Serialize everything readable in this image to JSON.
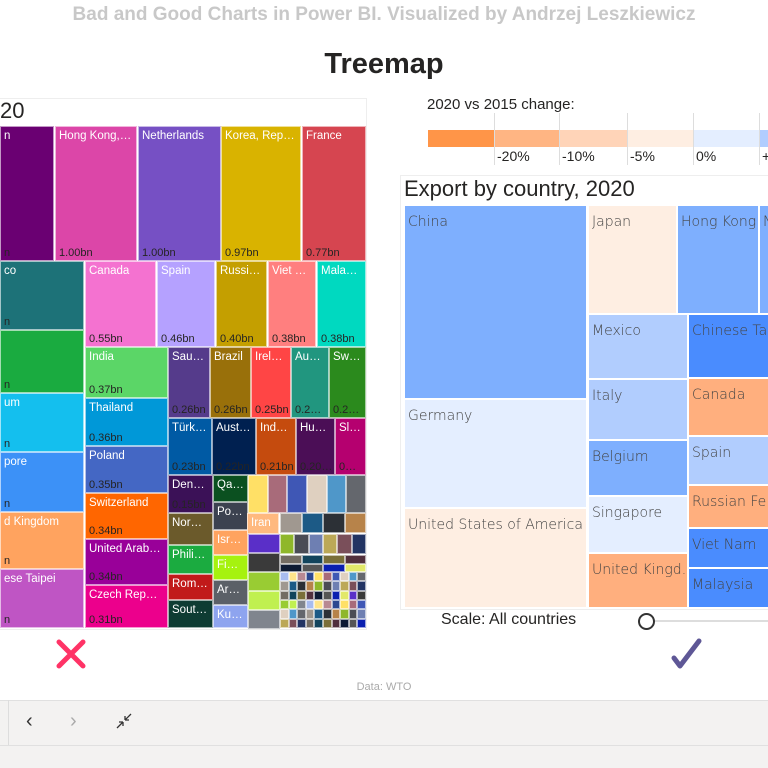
{
  "header": {
    "top_title": "Bad and Good Charts in Power BI. Visualized by Andrzej Leszkiewicz",
    "main_title": "Treemap"
  },
  "left_chart": {
    "title_fragment": "20",
    "cells": [
      {
        "label": "n",
        "value": "n",
        "color": "#6a0072"
      },
      {
        "label": "Hong Kong,…",
        "value": "1.00bn",
        "color": "#dc46a8"
      },
      {
        "label": "Netherlands",
        "value": "1.00bn",
        "color": "#7650c4"
      },
      {
        "label": "Korea, Rep…",
        "value": "0.97bn",
        "color": "#d9b300"
      },
      {
        "label": "France",
        "value": "0.77bn",
        "color": "#d64550"
      },
      {
        "label": "co",
        "value": "n",
        "color": "#1d7278"
      },
      {
        "label": "",
        "value": "n",
        "color": "#1aab40"
      },
      {
        "label": "um",
        "value": "n",
        "color": "#14bfee"
      },
      {
        "label": "pore",
        "value": "n",
        "color": "#3c91f7"
      },
      {
        "label": "d Kingdom",
        "value": "n",
        "color": "#ffa35f"
      },
      {
        "label": "ese Taipei",
        "value": "n",
        "color": "#bf55c4"
      },
      {
        "label": "Canada",
        "value": "0.55bn",
        "color": "#f472d0"
      },
      {
        "label": "Spain",
        "value": "0.46bn",
        "color": "#b5a1ff"
      },
      {
        "label": "Russi…",
        "value": "0.40bn",
        "color": "#c49f00"
      },
      {
        "label": "Viet …",
        "value": "0.38bn",
        "color": "#ff7f7f"
      },
      {
        "label": "Mala…",
        "value": "0.38bn",
        "color": "#00d9c0"
      },
      {
        "label": "India",
        "value": "0.37bn",
        "color": "#5bd667"
      },
      {
        "label": "Thailand",
        "value": "0.36bn",
        "color": "#0098d8"
      },
      {
        "label": "Poland",
        "value": "0.35bn",
        "color": "#4467c4"
      },
      {
        "label": "Switzerland",
        "value": "0.34bn",
        "color": "#ff6600"
      },
      {
        "label": "United Arab…",
        "value": "0.34bn",
        "color": "#990099"
      },
      {
        "label": "Czech Rep…",
        "value": "0.31bn",
        "color": "#ec008c"
      },
      {
        "label": "Sau…",
        "value": "0.26bn",
        "color": "#553b8b"
      },
      {
        "label": "Brazil",
        "value": "0.26bn",
        "color": "#99700a"
      },
      {
        "label": "Irel…",
        "value": "0.25bn",
        "color": "#ff4545"
      },
      {
        "label": "Au…",
        "value": "0.2…",
        "color": "#21967f"
      },
      {
        "label": "Sw…",
        "value": "0.2…",
        "color": "#2b8a1d"
      },
      {
        "label": "Türk…",
        "value": "0.23bn",
        "color": "#005aa4"
      },
      {
        "label": "Aust…",
        "value": "0.22bn",
        "color": "#002050"
      },
      {
        "label": "Ind…",
        "value": "0.21bn",
        "color": "#c54b0e"
      },
      {
        "label": "Hu…",
        "value": "0.20…",
        "color": "#4b0e56"
      },
      {
        "label": "Sl…",
        "value": "0…",
        "color": "#b5006f"
      },
      {
        "label": "Den…",
        "value": "0.15bn",
        "color": "#3b1157"
      },
      {
        "label": "Nor…",
        "value": "",
        "color": "#6b5a2b"
      },
      {
        "label": "Phili…",
        "value": "",
        "color": "#1bab40"
      },
      {
        "label": "Rom…",
        "value": "",
        "color": "#c11a1a"
      },
      {
        "label": "Sout…",
        "value": "",
        "color": "#0e3c33"
      },
      {
        "label": "Qa…",
        "value": "",
        "color": "#0b5020"
      },
      {
        "label": "Po…",
        "value": "",
        "color": "#3c4250"
      },
      {
        "label": "Isr…",
        "value": "",
        "color": "#ffa35f"
      },
      {
        "label": "Fi…",
        "value": "",
        "color": "#a6f20f"
      },
      {
        "label": "Ar…",
        "value": "",
        "color": "#5b6067"
      },
      {
        "label": "Ku…",
        "value": "",
        "color": "#8ea4ef"
      },
      {
        "label": "Iran",
        "value": "",
        "color": "#ffb97f"
      }
    ]
  },
  "legend": {
    "title": "2020 vs 2015 change:",
    "colors": [
      "#ff9548",
      "#ffb583",
      "#ffd4b8",
      "#feeee2",
      "#e4eeff",
      "#b1cdfe"
    ],
    "ticks": [
      "-20%",
      "-10%",
      "-5%",
      "0%",
      "+"
    ]
  },
  "right_chart": {
    "title": "Export by country, 2020",
    "cells": [
      {
        "label": "China",
        "color": "#7eaffe"
      },
      {
        "label": "Germany",
        "color": "#e4eeff"
      },
      {
        "label": "United States of America",
        "color": "#feeee2"
      },
      {
        "label": "Japan",
        "color": "#feeee2"
      },
      {
        "label": "Hong Kong…",
        "color": "#7eaffe"
      },
      {
        "label": "N",
        "color": "#7eaffe"
      },
      {
        "label": "Mexico",
        "color": "#b1cdfe"
      },
      {
        "label": "Italy",
        "color": "#b1cdfe"
      },
      {
        "label": "Belgium",
        "color": "#7eaffe"
      },
      {
        "label": "Singapore",
        "color": "#e4eeff"
      },
      {
        "label": "United Kingd…",
        "color": "#ffaf7e"
      },
      {
        "label": "Chinese Ta…",
        "color": "#4a8cfe"
      },
      {
        "label": "Canada",
        "color": "#ffaf7e"
      },
      {
        "label": "Spain",
        "color": "#b1cdfe"
      },
      {
        "label": "Russian Fe…",
        "color": "#ffaf7e"
      },
      {
        "label": "Viet Nam",
        "color": "#4a8cfe"
      },
      {
        "label": "Malaysia",
        "color": "#4a8cfe"
      }
    ]
  },
  "slider": {
    "label": "Scale: All countries",
    "value": 0
  },
  "marks": {
    "bad_color": "#ff3366",
    "good_color": "#5e5796"
  },
  "footer": {
    "source": "Data: WTO"
  },
  "nav": {
    "back_icon": "chevron-left-icon",
    "forward_icon": "chevron-right-icon",
    "collapse_icon": "collapse-icon"
  }
}
